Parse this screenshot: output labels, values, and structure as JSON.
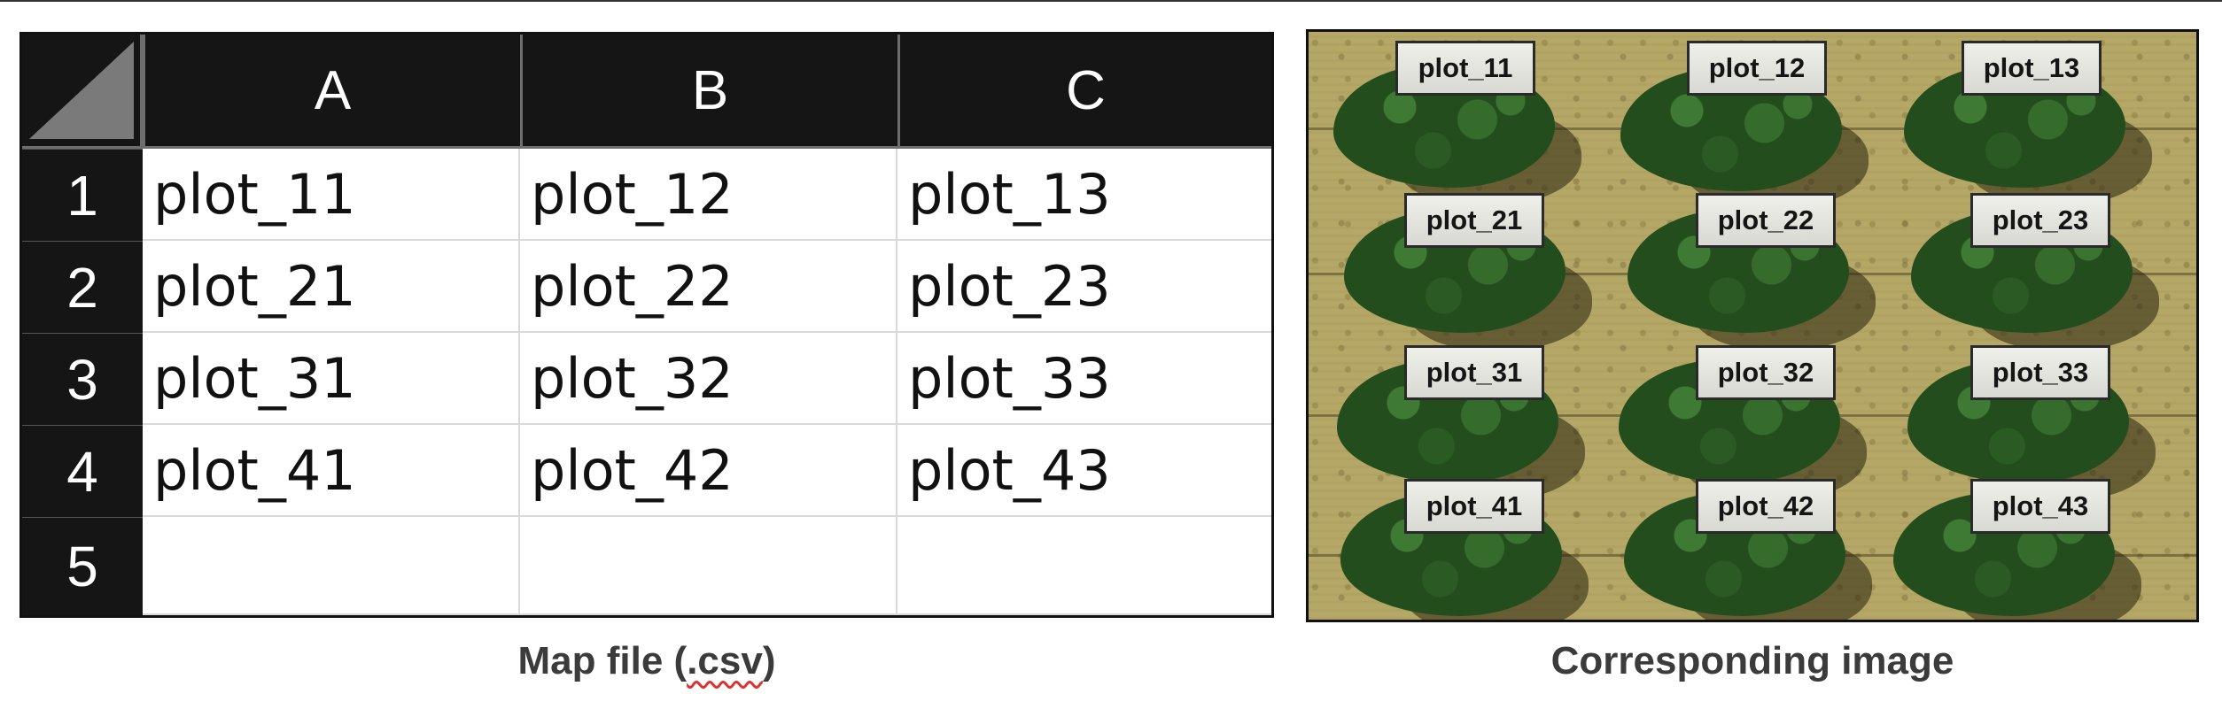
{
  "spreadsheet": {
    "columns": [
      "A",
      "B",
      "C"
    ],
    "rows": [
      {
        "number": "1",
        "cells": [
          "plot_11",
          "plot_12",
          "plot_13"
        ]
      },
      {
        "number": "2",
        "cells": [
          "plot_21",
          "plot_22",
          "plot_23"
        ]
      },
      {
        "number": "3",
        "cells": [
          "plot_31",
          "plot_32",
          "plot_33"
        ]
      },
      {
        "number": "4",
        "cells": [
          "plot_41",
          "plot_42",
          "plot_43"
        ]
      },
      {
        "number": "5",
        "cells": [
          "",
          "",
          ""
        ]
      }
    ]
  },
  "captions": {
    "left_prefix": "Map file (",
    "left_ext": ".csv",
    "left_suffix": ")",
    "right": "Corresponding image"
  },
  "image": {
    "labels": [
      [
        "plot_11",
        "plot_12",
        "plot_13"
      ],
      [
        "plot_21",
        "plot_22",
        "plot_23"
      ],
      [
        "plot_31",
        "plot_32",
        "plot_33"
      ],
      [
        "plot_41",
        "plot_42",
        "plot_43"
      ]
    ]
  },
  "colors": {
    "header_bg": "#151515",
    "header_text": "#ffffff",
    "grid_line": "#d9d9d9",
    "spellcheck_underline": "#e03030",
    "ground": "#b5a766",
    "canopy": "#244d1e"
  }
}
